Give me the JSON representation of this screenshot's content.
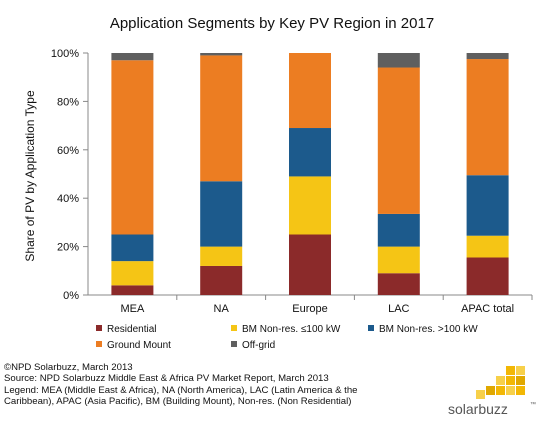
{
  "chart_data": {
    "type": "bar",
    "stacked": true,
    "title": "Application Segments by Key PV Region in 2017",
    "ylabel": "Share of PV by Application Type",
    "xlabel": "",
    "ylim": [
      0,
      100
    ],
    "y_ticks": [
      "0%",
      "20%",
      "40%",
      "60%",
      "80%",
      "100%"
    ],
    "y_tick_values": [
      0,
      20,
      40,
      60,
      80,
      100
    ],
    "grid": false,
    "legend_position": "bottom",
    "categories": [
      "MEA",
      "NA",
      "Europe",
      "LAC",
      "APAC total"
    ],
    "series": [
      {
        "name": "Residential",
        "color": "#8b2a2a",
        "values": [
          4,
          12,
          25,
          9,
          15.5
        ]
      },
      {
        "name": "BM Non-res. ≤100 kW",
        "color": "#f5c515",
        "values": [
          10,
          8,
          24,
          11,
          9
        ]
      },
      {
        "name": "BM Non-res. >100 kW",
        "color": "#1c5a8c",
        "values": [
          11,
          27,
          20,
          13.5,
          25
        ]
      },
      {
        "name": "Ground Mount",
        "color": "#ec7d22",
        "values": [
          72,
          52,
          31,
          60.5,
          48
        ]
      },
      {
        "name": "Off-grid",
        "color": "#5f5f5f",
        "values": [
          3,
          1,
          0,
          6,
          2.5
        ]
      }
    ]
  },
  "footer": {
    "lines": [
      "©NPD Solarbuzz, March 2013",
      "Source: NPD Solarbuzz Middle East & Africa PV Market Report, March 2013",
      "Legend: MEA (Middle East & Africa), NA (North America), LAC (Latin America & the",
      "Caribbean), APAC (Asia Pacific), BM (Building Mount), Non-res. (Non Residential)"
    ]
  },
  "logo": {
    "text": "solarbuzz",
    "trademark": "™",
    "colors": [
      "#f2b705",
      "#f7d04a",
      "#e0a800"
    ]
  }
}
